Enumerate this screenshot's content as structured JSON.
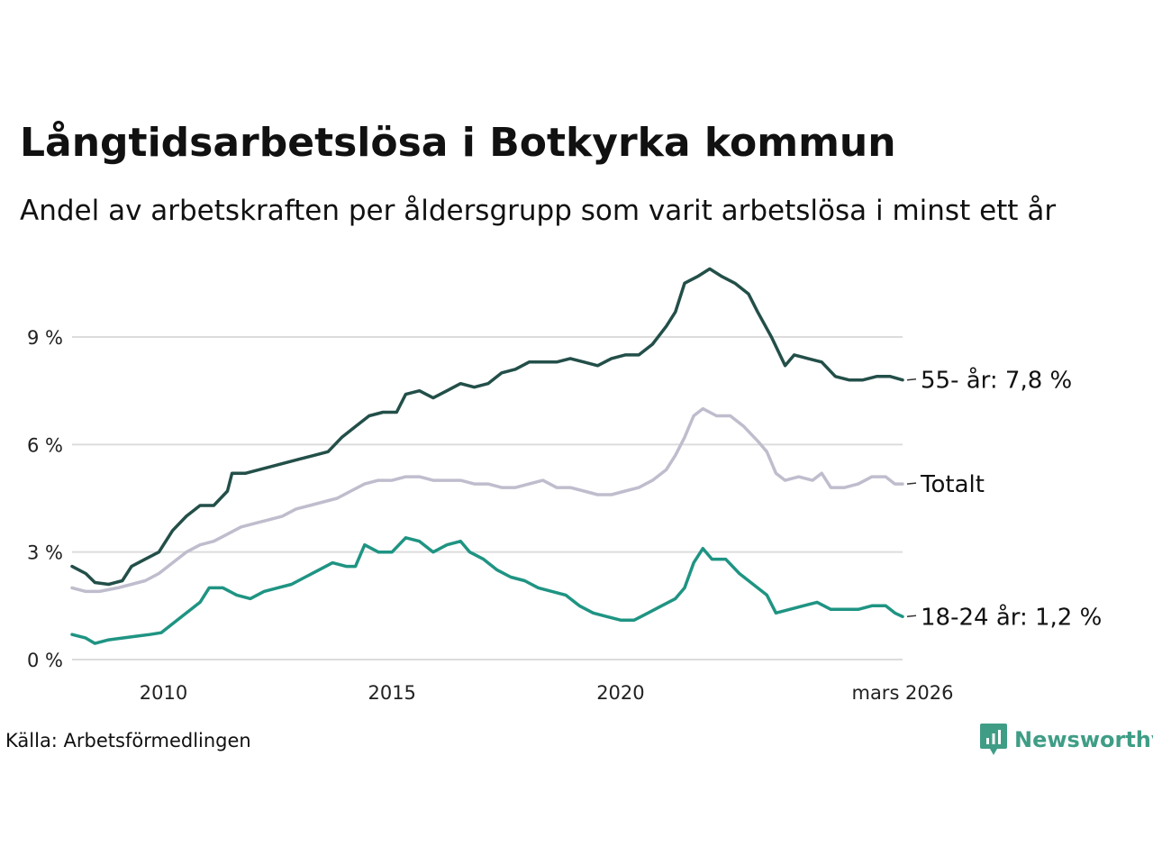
{
  "header": {
    "title": "Långtidsarbetslösa i Botkyrka kommun",
    "subtitle": "Andel av arbetskraften per åldersgrupp som varit arbetslösa i minst ett år"
  },
  "footer": {
    "source": "Källa: Arbetsförmedlingen",
    "brand": "Newsworthy",
    "brand_color": "#3f9d86"
  },
  "chart_data": {
    "type": "line",
    "title": "Långtidsarbetslösa i Botkyrka kommun",
    "xlabel": "",
    "ylabel": "",
    "x_range": [
      2008.0,
      2026.17
    ],
    "ylim": [
      0,
      11
    ],
    "y_ticks": [
      0,
      3,
      6,
      9
    ],
    "y_tick_labels": [
      "0 %",
      "3 %",
      "6 %",
      "9 %"
    ],
    "x_ticks": [
      2010,
      2015,
      2020,
      2026.17
    ],
    "x_tick_labels": [
      "2010",
      "2015",
      "2020",
      "mars 2026"
    ],
    "grid": true,
    "series": [
      {
        "name": "55- år",
        "end_label": "55- år: 7,8 %",
        "color": "#234f49",
        "points": [
          [
            2008.0,
            2.6
          ],
          [
            2008.3,
            2.4
          ],
          [
            2008.5,
            2.15
          ],
          [
            2008.8,
            2.1
          ],
          [
            2009.1,
            2.2
          ],
          [
            2009.3,
            2.6
          ],
          [
            2009.6,
            2.8
          ],
          [
            2009.9,
            3.0
          ],
          [
            2010.2,
            3.6
          ],
          [
            2010.5,
            4.0
          ],
          [
            2010.8,
            4.3
          ],
          [
            2011.1,
            4.3
          ],
          [
            2011.4,
            4.7
          ],
          [
            2011.5,
            5.2
          ],
          [
            2011.8,
            5.2
          ],
          [
            2012.1,
            5.3
          ],
          [
            2012.4,
            5.4
          ],
          [
            2012.7,
            5.5
          ],
          [
            2013.0,
            5.6
          ],
          [
            2013.3,
            5.7
          ],
          [
            2013.6,
            5.8
          ],
          [
            2013.9,
            6.2
          ],
          [
            2014.2,
            6.5
          ],
          [
            2014.5,
            6.8
          ],
          [
            2014.8,
            6.9
          ],
          [
            2015.1,
            6.9
          ],
          [
            2015.3,
            7.4
          ],
          [
            2015.6,
            7.5
          ],
          [
            2015.9,
            7.3
          ],
          [
            2016.2,
            7.5
          ],
          [
            2016.5,
            7.7
          ],
          [
            2016.8,
            7.6
          ],
          [
            2017.1,
            7.7
          ],
          [
            2017.4,
            8.0
          ],
          [
            2017.7,
            8.1
          ],
          [
            2018.0,
            8.3
          ],
          [
            2018.3,
            8.3
          ],
          [
            2018.6,
            8.3
          ],
          [
            2018.9,
            8.4
          ],
          [
            2019.2,
            8.3
          ],
          [
            2019.5,
            8.2
          ],
          [
            2019.8,
            8.4
          ],
          [
            2020.1,
            8.5
          ],
          [
            2020.4,
            8.5
          ],
          [
            2020.7,
            8.8
          ],
          [
            2021.0,
            9.3
          ],
          [
            2021.2,
            9.7
          ],
          [
            2021.4,
            10.5
          ],
          [
            2021.7,
            10.7
          ],
          [
            2021.95,
            10.9
          ],
          [
            2022.2,
            10.7
          ],
          [
            2022.5,
            10.5
          ],
          [
            2022.8,
            10.2
          ],
          [
            2023.0,
            9.7
          ],
          [
            2023.3,
            9.0
          ],
          [
            2023.6,
            8.2
          ],
          [
            2023.8,
            8.5
          ],
          [
            2024.1,
            8.4
          ],
          [
            2024.4,
            8.3
          ],
          [
            2024.7,
            7.9
          ],
          [
            2025.0,
            7.8
          ],
          [
            2025.3,
            7.8
          ],
          [
            2025.6,
            7.9
          ],
          [
            2025.9,
            7.9
          ],
          [
            2026.17,
            7.8
          ]
        ]
      },
      {
        "name": "Totalt",
        "end_label": "Totalt",
        "color": "#bfbdcd",
        "points": [
          [
            2008.0,
            2.0
          ],
          [
            2008.3,
            1.9
          ],
          [
            2008.6,
            1.9
          ],
          [
            2009.0,
            2.0
          ],
          [
            2009.3,
            2.1
          ],
          [
            2009.6,
            2.2
          ],
          [
            2009.9,
            2.4
          ],
          [
            2010.2,
            2.7
          ],
          [
            2010.5,
            3.0
          ],
          [
            2010.8,
            3.2
          ],
          [
            2011.1,
            3.3
          ],
          [
            2011.4,
            3.5
          ],
          [
            2011.7,
            3.7
          ],
          [
            2012.0,
            3.8
          ],
          [
            2012.3,
            3.9
          ],
          [
            2012.6,
            4.0
          ],
          [
            2012.9,
            4.2
          ],
          [
            2013.2,
            4.3
          ],
          [
            2013.5,
            4.4
          ],
          [
            2013.8,
            4.5
          ],
          [
            2014.1,
            4.7
          ],
          [
            2014.4,
            4.9
          ],
          [
            2014.7,
            5.0
          ],
          [
            2015.0,
            5.0
          ],
          [
            2015.3,
            5.1
          ],
          [
            2015.6,
            5.1
          ],
          [
            2015.9,
            5.0
          ],
          [
            2016.2,
            5.0
          ],
          [
            2016.5,
            5.0
          ],
          [
            2016.8,
            4.9
          ],
          [
            2017.1,
            4.9
          ],
          [
            2017.4,
            4.8
          ],
          [
            2017.7,
            4.8
          ],
          [
            2018.0,
            4.9
          ],
          [
            2018.3,
            5.0
          ],
          [
            2018.6,
            4.8
          ],
          [
            2018.9,
            4.8
          ],
          [
            2019.2,
            4.7
          ],
          [
            2019.5,
            4.6
          ],
          [
            2019.8,
            4.6
          ],
          [
            2020.1,
            4.7
          ],
          [
            2020.4,
            4.8
          ],
          [
            2020.7,
            5.0
          ],
          [
            2021.0,
            5.3
          ],
          [
            2021.2,
            5.7
          ],
          [
            2021.4,
            6.2
          ],
          [
            2021.6,
            6.8
          ],
          [
            2021.8,
            7.0
          ],
          [
            2022.1,
            6.8
          ],
          [
            2022.4,
            6.8
          ],
          [
            2022.7,
            6.5
          ],
          [
            2023.0,
            6.1
          ],
          [
            2023.2,
            5.8
          ],
          [
            2023.4,
            5.2
          ],
          [
            2023.6,
            5.0
          ],
          [
            2023.9,
            5.1
          ],
          [
            2024.2,
            5.0
          ],
          [
            2024.4,
            5.2
          ],
          [
            2024.6,
            4.8
          ],
          [
            2024.9,
            4.8
          ],
          [
            2025.2,
            4.9
          ],
          [
            2025.5,
            5.1
          ],
          [
            2025.8,
            5.1
          ],
          [
            2026.0,
            4.9
          ],
          [
            2026.17,
            4.9
          ]
        ]
      },
      {
        "name": "18-24 år",
        "end_label": "18-24 år: 1,2 %",
        "color": "#1f9483",
        "points": [
          [
            2008.0,
            0.7
          ],
          [
            2008.3,
            0.6
          ],
          [
            2008.5,
            0.45
          ],
          [
            2008.8,
            0.55
          ],
          [
            2009.1,
            0.6
          ],
          [
            2009.4,
            0.65
          ],
          [
            2009.7,
            0.7
          ],
          [
            2009.95,
            0.75
          ],
          [
            2010.2,
            1.0
          ],
          [
            2010.5,
            1.3
          ],
          [
            2010.8,
            1.6
          ],
          [
            2011.0,
            2.0
          ],
          [
            2011.3,
            2.0
          ],
          [
            2011.6,
            1.8
          ],
          [
            2011.9,
            1.7
          ],
          [
            2012.2,
            1.9
          ],
          [
            2012.5,
            2.0
          ],
          [
            2012.8,
            2.1
          ],
          [
            2013.1,
            2.3
          ],
          [
            2013.4,
            2.5
          ],
          [
            2013.7,
            2.7
          ],
          [
            2014.0,
            2.6
          ],
          [
            2014.2,
            2.6
          ],
          [
            2014.4,
            3.2
          ],
          [
            2014.7,
            3.0
          ],
          [
            2015.0,
            3.0
          ],
          [
            2015.3,
            3.4
          ],
          [
            2015.6,
            3.3
          ],
          [
            2015.9,
            3.0
          ],
          [
            2016.2,
            3.2
          ],
          [
            2016.5,
            3.3
          ],
          [
            2016.7,
            3.0
          ],
          [
            2017.0,
            2.8
          ],
          [
            2017.3,
            2.5
          ],
          [
            2017.6,
            2.3
          ],
          [
            2017.9,
            2.2
          ],
          [
            2018.2,
            2.0
          ],
          [
            2018.5,
            1.9
          ],
          [
            2018.8,
            1.8
          ],
          [
            2019.1,
            1.5
          ],
          [
            2019.4,
            1.3
          ],
          [
            2019.7,
            1.2
          ],
          [
            2020.0,
            1.1
          ],
          [
            2020.3,
            1.1
          ],
          [
            2020.6,
            1.3
          ],
          [
            2020.9,
            1.5
          ],
          [
            2021.2,
            1.7
          ],
          [
            2021.4,
            2.0
          ],
          [
            2021.6,
            2.7
          ],
          [
            2021.8,
            3.1
          ],
          [
            2022.0,
            2.8
          ],
          [
            2022.3,
            2.8
          ],
          [
            2022.6,
            2.4
          ],
          [
            2022.9,
            2.1
          ],
          [
            2023.2,
            1.8
          ],
          [
            2023.4,
            1.3
          ],
          [
            2023.7,
            1.4
          ],
          [
            2024.0,
            1.5
          ],
          [
            2024.3,
            1.6
          ],
          [
            2024.6,
            1.4
          ],
          [
            2024.9,
            1.4
          ],
          [
            2025.2,
            1.4
          ],
          [
            2025.5,
            1.5
          ],
          [
            2025.8,
            1.5
          ],
          [
            2026.0,
            1.3
          ],
          [
            2026.17,
            1.2
          ]
        ]
      }
    ]
  }
}
